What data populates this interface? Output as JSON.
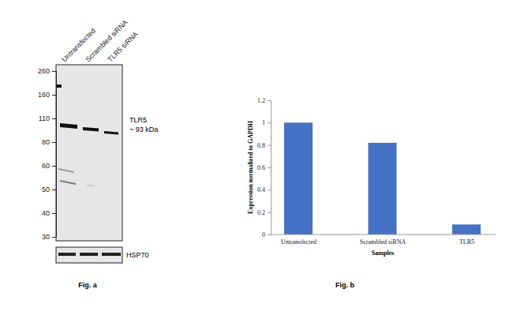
{
  "chart_data": {
    "type": "bar",
    "title": "Fig. b",
    "x_label": "Samples",
    "y_label": "Expression normalized to GAPDH",
    "categories": [
      "Untransfected",
      "Scrambled siRNA",
      "TLR5"
    ],
    "values": [
      1,
      0.82,
      0.09
    ],
    "color": "#4472c4",
    "ylim": [
      0,
      1.2
    ],
    "yticks": [
      0,
      0.2,
      0.4,
      0.6,
      0.8,
      1,
      1.2
    ],
    "grid": false
  },
  "blot": {
    "title": "Fig. a",
    "lanes": [
      "Untransfected",
      "Scrambled siRNA",
      "TLR5 siRNA"
    ],
    "markers": [
      260,
      160,
      110,
      80,
      60,
      50,
      40,
      30
    ],
    "target_label": "TLR5",
    "target_size": "~ 93 kDa",
    "control_label": "HSP70"
  }
}
